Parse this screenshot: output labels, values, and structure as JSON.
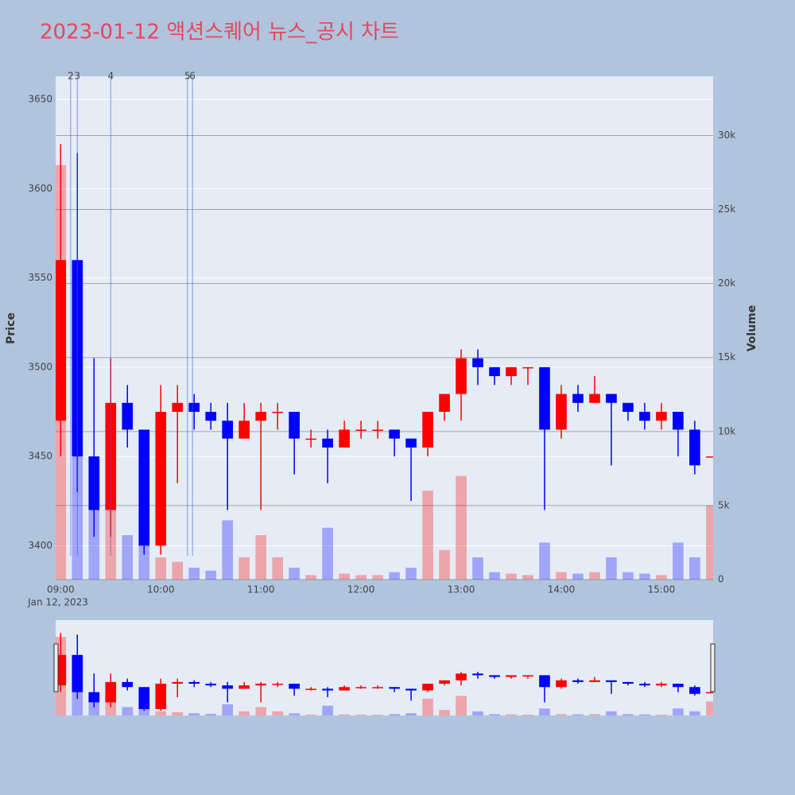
{
  "chart_data": {
    "type": "candlestick",
    "title": "2023-01-12 액션스퀘어 뉴스_공시 차트",
    "yaxis_title": "Price",
    "y2axis_title": "Volume",
    "x_date_label": "Jan 12, 2023",
    "increasing_color": "#ff0000",
    "decreasing_color": "#0000ff",
    "x": [
      "2023-01-12 09:00",
      "2023-01-12 09:10",
      "2023-01-12 09:20",
      "2023-01-12 09:30",
      "2023-01-12 09:40",
      "2023-01-12 09:50",
      "2023-01-12 10:00",
      "2023-01-12 10:10",
      "2023-01-12 10:20",
      "2023-01-12 10:30",
      "2023-01-12 10:40",
      "2023-01-12 10:50",
      "2023-01-12 11:00",
      "2023-01-12 11:10",
      "2023-01-12 11:20",
      "2023-01-12 11:30",
      "2023-01-12 11:40",
      "2023-01-12 11:50",
      "2023-01-12 12:00",
      "2023-01-12 12:10",
      "2023-01-12 12:20",
      "2023-01-12 12:30",
      "2023-01-12 12:40",
      "2023-01-12 12:50",
      "2023-01-12 13:00",
      "2023-01-12 13:10",
      "2023-01-12 13:20",
      "2023-01-12 13:30",
      "2023-01-12 13:40",
      "2023-01-12 13:50",
      "2023-01-12 14:00",
      "2023-01-12 14:10",
      "2023-01-12 14:20",
      "2023-01-12 14:30",
      "2023-01-12 14:40",
      "2023-01-12 14:50",
      "2023-01-12 15:00",
      "2023-01-12 15:10",
      "2023-01-12 15:20",
      "2023-01-12 15:30"
    ],
    "open": [
      3470,
      3560,
      3450,
      3420,
      3480,
      3465,
      3400,
      3475,
      3480,
      3475,
      3470,
      3460,
      3470,
      3475,
      3475,
      3460,
      3460,
      3455,
      3465,
      3465,
      3465,
      3460,
      3455,
      3475,
      3485,
      3505,
      3500,
      3495,
      3500,
      3500,
      3465,
      3485,
      3480,
      3485,
      3480,
      3475,
      3470,
      3475,
      3465,
      3450
    ],
    "high": [
      3625,
      3620,
      3505,
      3505,
      3490,
      3465,
      3490,
      3490,
      3485,
      3480,
      3480,
      3480,
      3480,
      3480,
      3475,
      3465,
      3465,
      3470,
      3470,
      3470,
      3465,
      3460,
      3475,
      3485,
      3510,
      3510,
      3500,
      3500,
      3500,
      3500,
      3490,
      3490,
      3495,
      3485,
      3480,
      3480,
      3480,
      3475,
      3470,
      3450
    ],
    "low": [
      3450,
      3430,
      3405,
      3405,
      3455,
      3395,
      3395,
      3435,
      3465,
      3465,
      3420,
      3460,
      3420,
      3465,
      3440,
      3455,
      3435,
      3455,
      3460,
      3460,
      3450,
      3425,
      3450,
      3470,
      3470,
      3490,
      3490,
      3490,
      3490,
      3420,
      3460,
      3475,
      3480,
      3445,
      3470,
      3465,
      3465,
      3450,
      3440,
      3450
    ],
    "close": [
      3560,
      3450,
      3420,
      3480,
      3465,
      3400,
      3475,
      3480,
      3475,
      3470,
      3460,
      3470,
      3475,
      3475,
      3460,
      3460,
      3455,
      3465,
      3465,
      3465,
      3460,
      3455,
      3475,
      3485,
      3505,
      3500,
      3495,
      3500,
      3500,
      3465,
      3485,
      3480,
      3485,
      3480,
      3475,
      3470,
      3475,
      3465,
      3445,
      3450
    ],
    "volume": [
      28000,
      15000,
      8000,
      5000,
      3000,
      2500,
      1500,
      1200,
      800,
      600,
      4000,
      1500,
      3000,
      1500,
      800,
      300,
      3500,
      400,
      300,
      300,
      500,
      800,
      6000,
      2000,
      7000,
      1500,
      500,
      400,
      300,
      2500,
      500,
      400,
      500,
      1500,
      500,
      400,
      300,
      2500,
      1500,
      5000
    ],
    "xlim": [
      "2023-01-12 08:57",
      "2023-01-12 15:31"
    ],
    "xticks": [
      {
        "value": "2023-01-12 09:00",
        "label": "09:00"
      },
      {
        "value": "2023-01-12 10:00",
        "label": "10:00"
      },
      {
        "value": "2023-01-12 11:00",
        "label": "11:00"
      },
      {
        "value": "2023-01-12 12:00",
        "label": "12:00"
      },
      {
        "value": "2023-01-12 13:00",
        "label": "13:00"
      },
      {
        "value": "2023-01-12 14:00",
        "label": "14:00"
      },
      {
        "value": "2023-01-12 15:00",
        "label": "15:00"
      }
    ],
    "ylim": [
      3381,
      3663
    ],
    "yticks": [
      3400,
      3450,
      3500,
      3550,
      3600,
      3650
    ],
    "y2lim": [
      0,
      34000
    ],
    "y2ticks": [
      {
        "value": 0,
        "label": "0"
      },
      {
        "value": 5000,
        "label": "5k"
      },
      {
        "value": 10000,
        "label": "10k"
      },
      {
        "value": 15000,
        "label": "15k"
      },
      {
        "value": 20000,
        "label": "20k"
      },
      {
        "value": 25000,
        "label": "25k"
      },
      {
        "value": 30000,
        "label": "30k"
      }
    ],
    "annotations": [
      {
        "x": "2023-01-12 09:06",
        "label": "2"
      },
      {
        "x": "2023-01-12 09:10",
        "label": "3"
      },
      {
        "x": "2023-01-12 09:30",
        "label": "4"
      },
      {
        "x": "2023-01-12 10:16",
        "label": "5"
      },
      {
        "x": "2023-01-12 10:19",
        "label": "6"
      }
    ],
    "grid": true
  }
}
